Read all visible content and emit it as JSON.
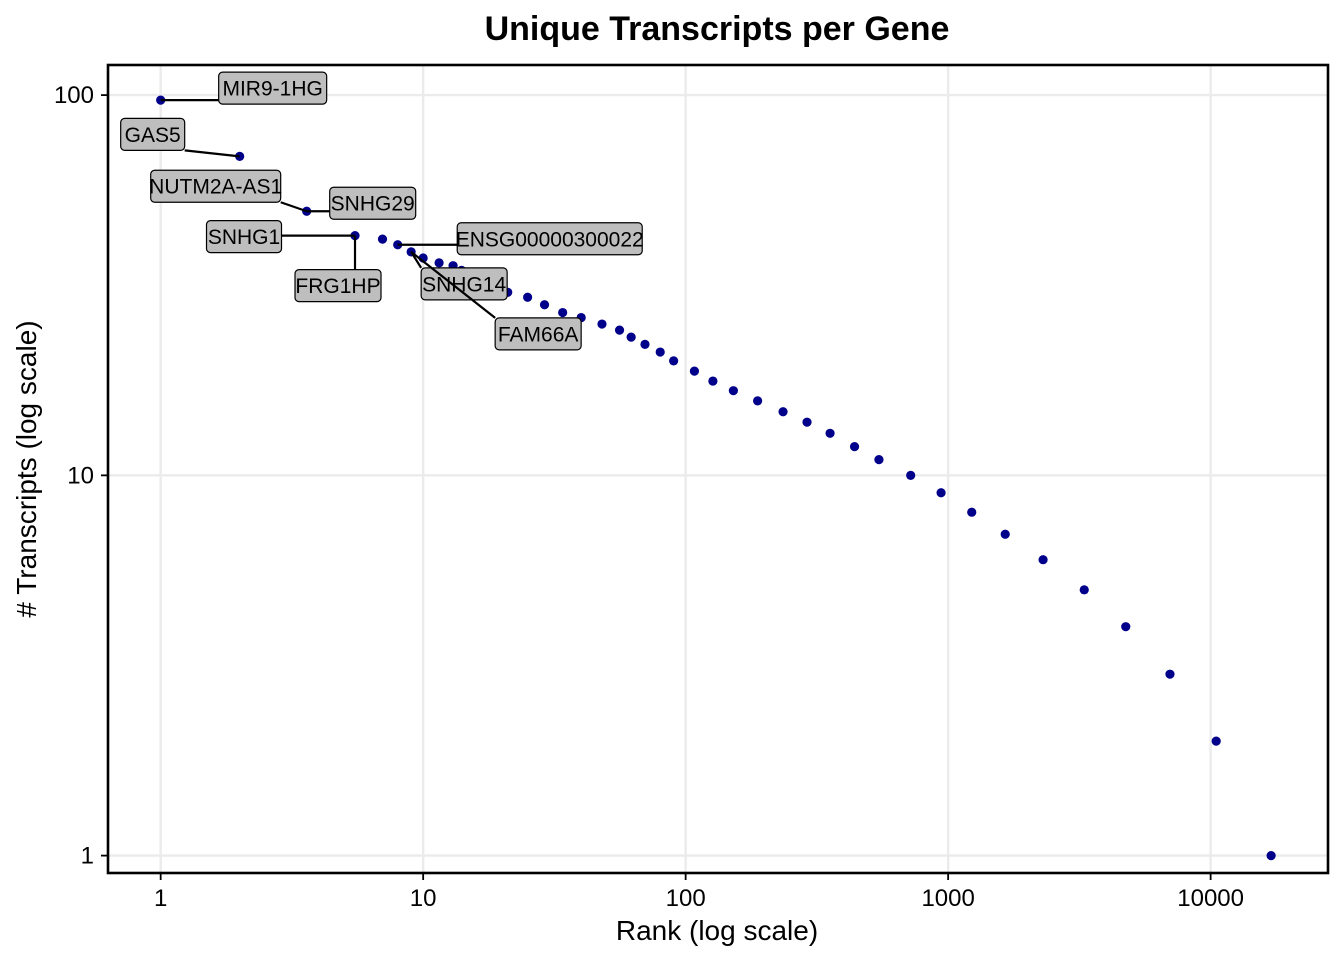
{
  "chart_data": {
    "type": "scatter",
    "title": "Unique Transcripts per Gene",
    "xlabel": "Rank (log scale)",
    "ylabel": "# Transcripts (log scale)",
    "x_scale": "log",
    "y_scale": "log",
    "xlim": [
      0.63,
      28000
    ],
    "ylim": [
      0.9,
      120
    ],
    "x_ticks": [
      1,
      10,
      100,
      1000,
      10000
    ],
    "x_tick_labels": [
      "1",
      "10",
      "100",
      "1000",
      "10000"
    ],
    "y_ticks": [
      1,
      10,
      100
    ],
    "y_tick_labels": [
      "1",
      "10",
      "100"
    ],
    "grid": true,
    "point_color": "#00008b",
    "series": [
      {
        "x": [
          1,
          2,
          3.6,
          5.5,
          7,
          8,
          9,
          10,
          11.5,
          13,
          14,
          16,
          18,
          21,
          25,
          29,
          34,
          40,
          48,
          56,
          62,
          70,
          80,
          90,
          108,
          127,
          152,
          188,
          235,
          290,
          355,
          440,
          545,
          720,
          940,
          1230,
          1650,
          2300,
          3300,
          4750,
          7000,
          10500,
          17000
        ],
        "y": [
          97,
          69,
          49.5,
          42.7,
          41.8,
          40.4,
          38.7,
          37.3,
          36.2,
          35.6,
          34.6,
          33.2,
          31.8,
          30.3,
          29.4,
          28.1,
          26.8,
          26,
          25,
          24.1,
          23.1,
          22.1,
          21.1,
          20,
          18.8,
          17.7,
          16.7,
          15.7,
          14.7,
          13.8,
          12.9,
          11.9,
          11,
          10,
          9,
          8,
          7,
          6,
          5,
          4,
          3,
          2,
          1
        ]
      }
    ],
    "annotations": [
      {
        "label": "MIR9-1HG",
        "x": 1,
        "y": 97
      },
      {
        "label": "GAS5",
        "x": 2,
        "y": 69
      },
      {
        "label": "NUTM2A-AS1",
        "x": 3.6,
        "y": 49.5
      },
      {
        "label": "SNHG29",
        "x": 3.6,
        "y": 49.5
      },
      {
        "label": "SNHG1",
        "x": 5.5,
        "y": 42.7
      },
      {
        "label": "FRG1HP",
        "x": 5.5,
        "y": 42.7
      },
      {
        "label": "ENSG00000300022",
        "x": 8,
        "y": 40.4
      },
      {
        "label": "SNHG14",
        "x": 9,
        "y": 38.7
      },
      {
        "label": "FAM66A",
        "x": 9,
        "y": 38.7
      }
    ]
  }
}
